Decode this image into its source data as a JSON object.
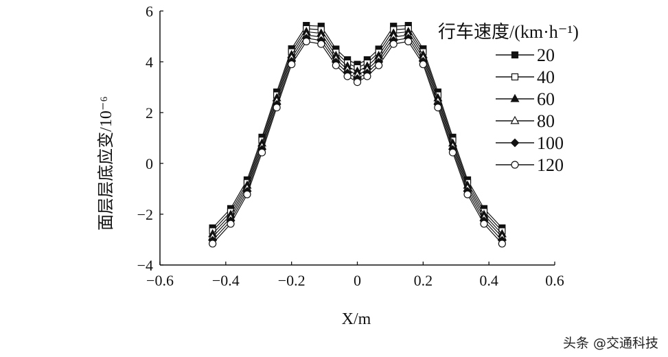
{
  "chart_data": {
    "type": "line",
    "xlabel": "X/m",
    "ylabel": "面层层底应变/10⁻⁶",
    "xlim": [
      -0.6,
      0.6
    ],
    "ylim": [
      -4,
      6
    ],
    "xticks": [
      "−0.6",
      "−0.4",
      "−0.2",
      "0",
      "0.2",
      "0.4",
      "0.6"
    ],
    "xtick_values": [
      -0.6,
      -0.4,
      -0.2,
      0,
      0.2,
      0.4,
      0.6
    ],
    "yticks": [
      "−4",
      "−2",
      "0",
      "2",
      "4",
      "6"
    ],
    "ytick_values": [
      -4,
      -2,
      0,
      2,
      4,
      6
    ],
    "legend_title": "行车速度/(km·h⁻¹)",
    "legend_position": "top-right",
    "x": [
      -0.44,
      -0.385,
      -0.335,
      -0.29,
      -0.245,
      -0.2,
      -0.155,
      -0.11,
      -0.065,
      -0.03,
      0,
      0.03,
      0.065,
      0.11,
      0.155,
      0.2,
      0.245,
      0.29,
      0.335,
      0.385,
      0.44
    ],
    "series": [
      {
        "name": "20",
        "marker": "square-filled",
        "values": [
          -2.54,
          -1.78,
          -0.65,
          1.03,
          2.81,
          4.51,
          5.43,
          5.4,
          4.5,
          4.08,
          3.9,
          4.08,
          4.5,
          5.4,
          5.43,
          4.51,
          2.81,
          1.03,
          -0.65,
          -1.78,
          -2.54
        ]
      },
      {
        "name": "40",
        "marker": "square-open",
        "values": [
          -2.66,
          -1.9,
          -0.76,
          0.91,
          2.69,
          4.39,
          5.3,
          5.26,
          4.37,
          3.95,
          3.76,
          3.95,
          4.37,
          5.26,
          5.3,
          4.39,
          2.69,
          0.91,
          -0.76,
          -1.9,
          -2.66
        ]
      },
      {
        "name": "60",
        "marker": "triangle-filled",
        "values": [
          -2.78,
          -2.02,
          -0.87,
          0.79,
          2.57,
          4.27,
          5.18,
          5.12,
          4.24,
          3.82,
          3.62,
          3.82,
          4.24,
          5.12,
          5.18,
          4.27,
          2.57,
          0.79,
          -0.87,
          -2.02,
          -2.78
        ]
      },
      {
        "name": "80",
        "marker": "triangle-open",
        "values": [
          -2.9,
          -2.14,
          -0.98,
          0.67,
          2.45,
          4.15,
          5.05,
          4.98,
          4.11,
          3.69,
          3.48,
          3.69,
          4.11,
          4.98,
          5.05,
          4.15,
          2.45,
          0.67,
          -0.98,
          -2.14,
          -2.9
        ]
      },
      {
        "name": "100",
        "marker": "diamond-filled",
        "values": [
          -3.03,
          -2.26,
          -1.1,
          0.55,
          2.32,
          4.02,
          4.93,
          4.84,
          3.99,
          3.56,
          3.34,
          3.56,
          3.99,
          4.84,
          4.93,
          4.02,
          2.32,
          0.55,
          -1.1,
          -2.26,
          -3.03
        ]
      },
      {
        "name": "120",
        "marker": "circle-open",
        "values": [
          -3.16,
          -2.38,
          -1.22,
          0.43,
          2.2,
          3.9,
          4.8,
          4.7,
          3.86,
          3.43,
          3.2,
          3.43,
          3.86,
          4.7,
          4.8,
          3.9,
          2.2,
          0.43,
          -1.22,
          -2.38,
          -3.16
        ]
      }
    ]
  },
  "watermark": "头条 @交通科技"
}
